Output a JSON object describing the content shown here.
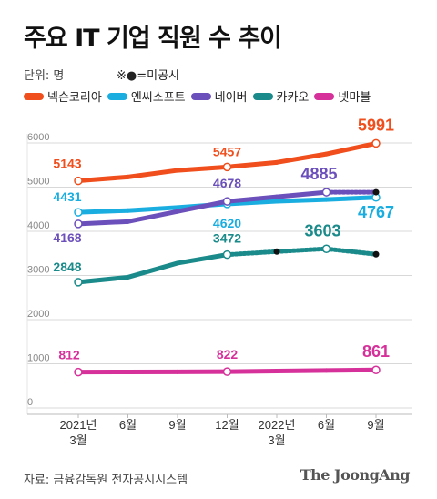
{
  "title": "주요 IT 기업 직원 수 추이",
  "unit_label": "단위: 명",
  "note_label": "※●=미공시",
  "source": "자료: 금융감독원 전자공시시스템",
  "brand": "The JoongAng",
  "chart_data": {
    "type": "line",
    "categories": [
      "2021년\n3월",
      "6월",
      "9월",
      "12월",
      "2022년\n3월",
      "6월",
      "9월"
    ],
    "ylim": [
      0,
      6000
    ],
    "yticks": [
      "0",
      "1000",
      "2000",
      "3000",
      "4000",
      "5000",
      "6000"
    ],
    "grid": true,
    "legend_position": "top",
    "series": [
      {
        "name": "넥슨코리아",
        "color": "#f04e1c",
        "values": [
          5143,
          5230,
          5380,
          5457,
          5560,
          5750,
          5991
        ],
        "undisclosed": [],
        "labels": [
          {
            "i": 0,
            "text": "5143"
          },
          {
            "i": 3,
            "text": "5457"
          },
          {
            "i": 6,
            "text": "5991"
          }
        ]
      },
      {
        "name": "엔씨소프트",
        "color": "#1aaee0",
        "values": [
          4431,
          4470,
          4540,
          4620,
          4680,
          4720,
          4767
        ],
        "undisclosed": [],
        "labels": [
          {
            "i": 0,
            "text": "4431"
          },
          {
            "i": 3,
            "text": "4620"
          },
          {
            "i": 6,
            "text": "4767"
          }
        ]
      },
      {
        "name": "네이버",
        "color": "#6b4fbb",
        "values": [
          4168,
          4220,
          4450,
          4678,
          4780,
          4885,
          4885
        ],
        "undisclosed": [
          6
        ],
        "labels": [
          {
            "i": 0,
            "text": "4168"
          },
          {
            "i": 3,
            "text": "4678"
          },
          {
            "i": 5,
            "text": "4885"
          }
        ]
      },
      {
        "name": "카카오",
        "color": "#1a8a8a",
        "values": [
          2848,
          2960,
          3280,
          3472,
          3540,
          3603,
          3480
        ],
        "undisclosed": [
          4,
          6
        ],
        "labels": [
          {
            "i": 0,
            "text": "2848"
          },
          {
            "i": 3,
            "text": "3472"
          },
          {
            "i": 5,
            "text": "3603"
          }
        ]
      },
      {
        "name": "넷마블",
        "color": "#d6319a",
        "values": [
          812,
          815,
          818,
          822,
          835,
          848,
          861
        ],
        "undisclosed": [],
        "labels": [
          {
            "i": 0,
            "text": "812"
          },
          {
            "i": 3,
            "text": "822"
          },
          {
            "i": 6,
            "text": "861"
          }
        ]
      }
    ]
  }
}
